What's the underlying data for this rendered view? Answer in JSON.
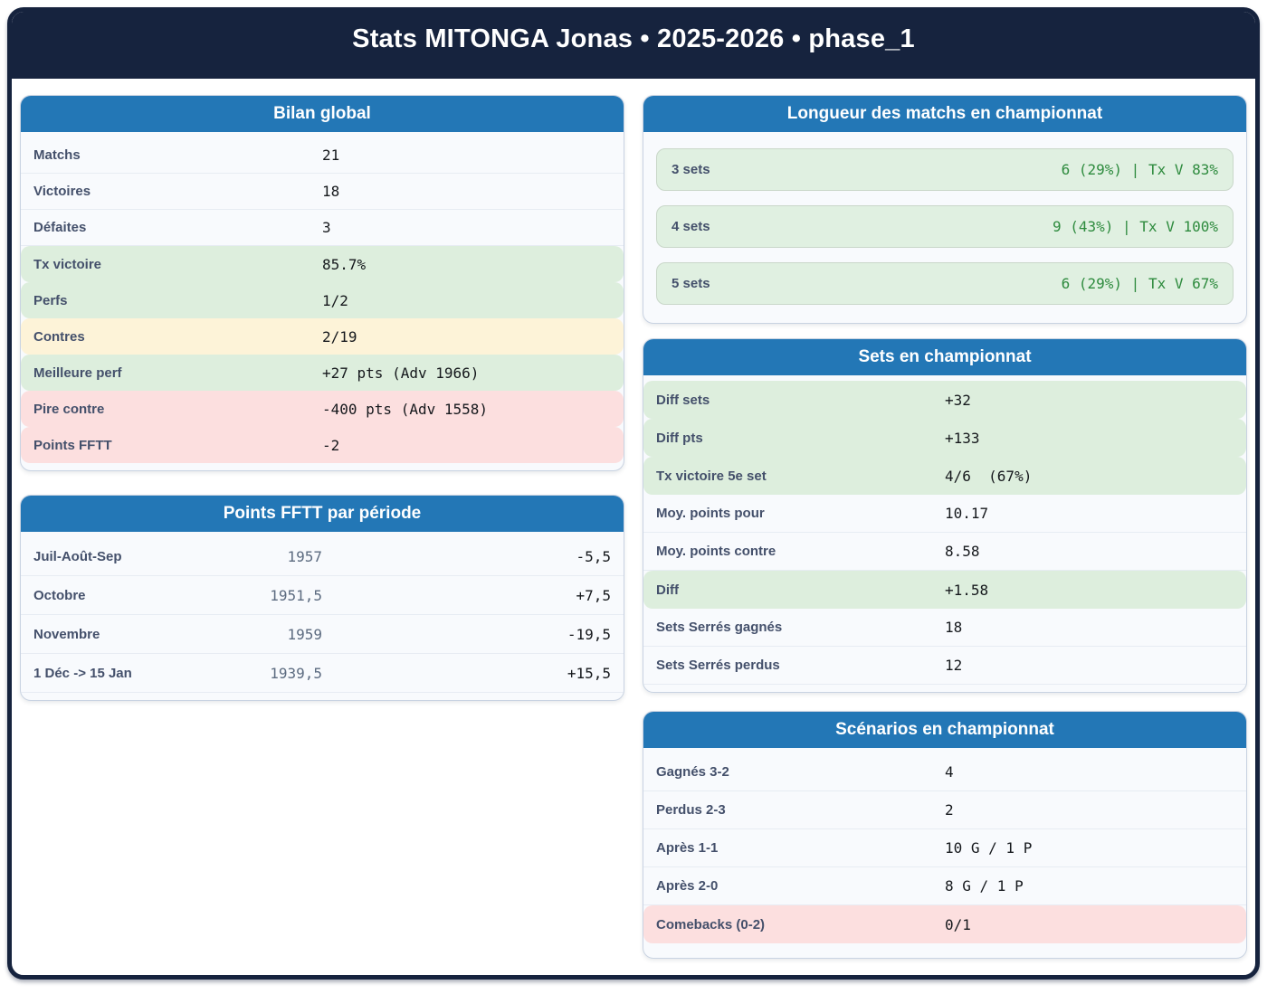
{
  "header": {
    "title": "Stats MITONGA Jonas • 2025-2026 • phase_1"
  },
  "colors": {
    "frame_navy": "#16233E",
    "card_header_blue": "#2377B6",
    "green_row_bg": "#DDEEDD",
    "yellow_row_bg": "#FDF3D8",
    "pink_row_bg": "#FCDFDF",
    "pill_green_bg": "#E0F0E1",
    "green_value_text": "#2E8B3E",
    "label_text": "#44506B",
    "muted_points_text": "#5C6B80"
  },
  "cards": {
    "bilan": {
      "title": "Bilan global",
      "rows": [
        {
          "label": "Matchs",
          "value": "21"
        },
        {
          "label": "Victoires",
          "value": "18"
        },
        {
          "label": "Défaites",
          "value": "3"
        },
        {
          "label": "Tx victoire",
          "value": "85.7%",
          "hl": "green"
        },
        {
          "label": "Perfs",
          "value": "1/2",
          "hl": "green"
        },
        {
          "label": "Contres",
          "value": "2/19",
          "hl": "yellow"
        },
        {
          "label": "Meilleure perf",
          "value": "+27 pts (Adv 1966)",
          "hl": "green"
        },
        {
          "label": "Pire contre",
          "value": "-400 pts (Adv 1558)",
          "hl": "pink"
        },
        {
          "label": "Points FFTT",
          "value": "-2",
          "hl": "pink"
        }
      ]
    },
    "periodes": {
      "title": "Points FFTT par période",
      "rows": [
        {
          "label": "Juil-Août-Sep",
          "mid": "1957",
          "value": "-5,5"
        },
        {
          "label": "Octobre",
          "mid": "1951,5",
          "value": "+7,5"
        },
        {
          "label": "Novembre",
          "mid": "1959",
          "value": "-19,5"
        },
        {
          "label": "1 Déc -> 15 Jan",
          "mid": "1939,5",
          "value": "+15,5"
        }
      ]
    },
    "longueur": {
      "title": "Longueur des matchs en championnat",
      "rows": [
        {
          "label": "3 sets",
          "value": "6 (29%) | Tx V 83%"
        },
        {
          "label": "4 sets",
          "value": "9 (43%) | Tx V 100%"
        },
        {
          "label": "5 sets",
          "value": "6 (29%) | Tx V 67%"
        }
      ]
    },
    "sets": {
      "title": "Sets en championnat",
      "rows": [
        {
          "label": "Diff sets",
          "value": "+32",
          "hl": "green"
        },
        {
          "label": "Diff pts",
          "value": "+133",
          "hl": "green"
        },
        {
          "label": "Tx victoire 5e set",
          "value": "4/6  (67%)",
          "hl": "green"
        },
        {
          "label": "Moy. points pour",
          "value": "10.17"
        },
        {
          "label": "Moy. points contre",
          "value": "8.58"
        },
        {
          "label": "Diff",
          "value": "+1.58",
          "hl": "green"
        },
        {
          "label": "Sets Serrés gagnés",
          "value": "18"
        },
        {
          "label": "Sets Serrés perdus",
          "value": "12"
        }
      ]
    },
    "scenarios": {
      "title": "Scénarios en championnat",
      "rows": [
        {
          "label": "Gagnés 3-2",
          "value": "4"
        },
        {
          "label": "Perdus 2-3",
          "value": "2"
        },
        {
          "label": "Après 1-1",
          "value": "10 G / 1 P"
        },
        {
          "label": "Après 2-0",
          "value": "8 G / 1 P"
        },
        {
          "label": "Comebacks (0-2)",
          "value": "0/1",
          "hl": "pink"
        }
      ]
    }
  }
}
